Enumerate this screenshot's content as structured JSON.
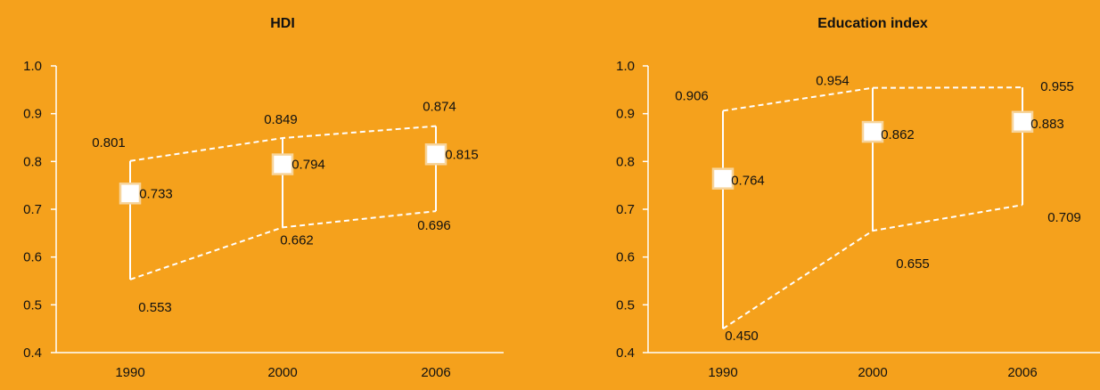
{
  "colors": {
    "background": "#f5a11c",
    "lines": "#ffffff",
    "axis": "#ffffff",
    "marker_fill": "#ffffff",
    "marker_edge": "#f7d49a",
    "text": "#111111"
  },
  "chart_data": [
    {
      "type": "line",
      "title": "HDI",
      "xlabel": "",
      "ylabel": "",
      "categories": [
        "1990",
        "2000",
        "2006"
      ],
      "ylim": [
        0.4,
        1.0
      ],
      "yticks": [
        "0.4",
        "0.5",
        "0.6",
        "0.7",
        "0.8",
        "0.9",
        "1.0"
      ],
      "series": [
        {
          "key": "max",
          "values": [
            0.801,
            0.849,
            0.874
          ],
          "labels": [
            "0.801",
            "0.849",
            "0.874"
          ]
        },
        {
          "key": "avg",
          "values": [
            0.733,
            0.794,
            0.815
          ],
          "labels": [
            "0.733",
            "0.794",
            "0.815"
          ]
        },
        {
          "key": "min",
          "values": [
            0.553,
            0.662,
            0.696
          ],
          "labels": [
            "0.553",
            "0.662",
            "0.696"
          ]
        }
      ]
    },
    {
      "type": "line",
      "title": "Education index",
      "xlabel": "",
      "ylabel": "",
      "categories": [
        "1990",
        "2000",
        "2006"
      ],
      "ylim": [
        0.4,
        1.0
      ],
      "yticks": [
        "0.4",
        "0.5",
        "0.6",
        "0.7",
        "0.8",
        "0.9",
        "1.0"
      ],
      "series": [
        {
          "key": "max",
          "values": [
            0.906,
            0.954,
            0.955
          ],
          "labels": [
            "0.906",
            "0.954",
            "0.955"
          ]
        },
        {
          "key": "avg",
          "values": [
            0.764,
            0.862,
            0.883
          ],
          "labels": [
            "0.764",
            "0.862",
            "0.883"
          ]
        },
        {
          "key": "min",
          "values": [
            0.45,
            0.655,
            0.709
          ],
          "labels": [
            "0.450",
            "0.655",
            "0.709"
          ]
        }
      ]
    }
  ]
}
